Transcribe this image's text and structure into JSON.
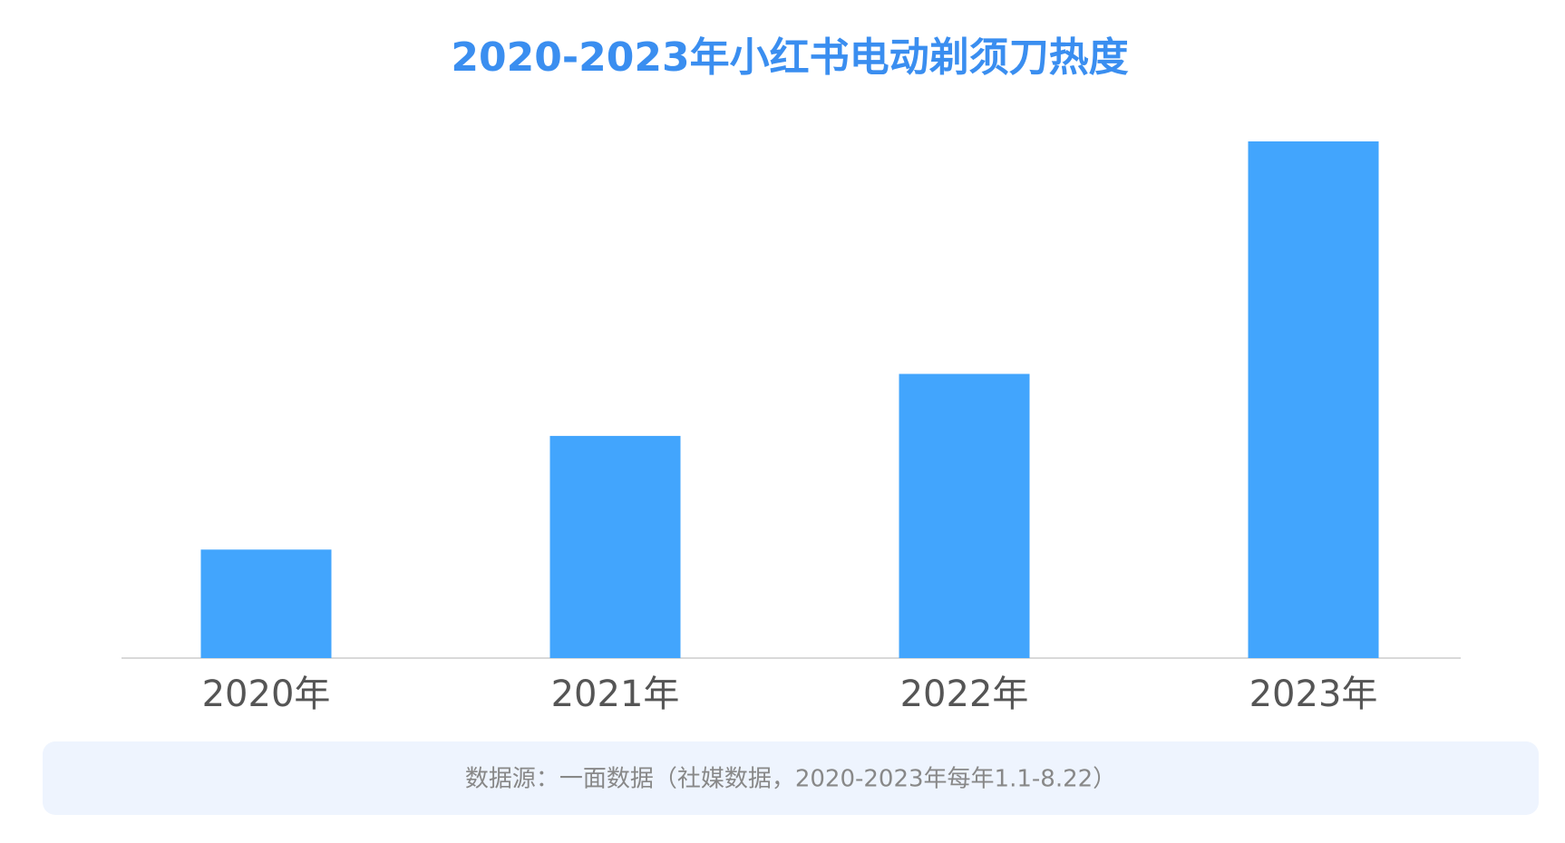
{
  "chart_data": {
    "type": "bar",
    "title": "2020-2023年小红书电动剃须刀热度",
    "categories": [
      "2020年",
      "2021年",
      "2022年",
      "2023年"
    ],
    "values": [
      21,
      43,
      55,
      100
    ],
    "color": "#42a5fd",
    "source": "数据源：一面数据（社媒数据，2020-2023年每年1.1-8.22）"
  }
}
